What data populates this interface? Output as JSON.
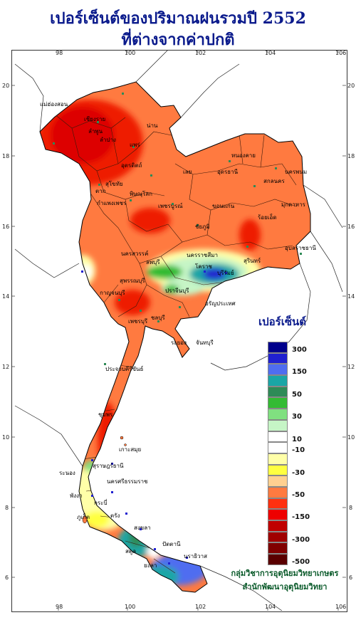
{
  "title": {
    "line1": "เปอร์เซ็นต์ของปริมาณฝนรวมปี 2552",
    "line2": "ที่ต่างจากค่าปกติ"
  },
  "axes": {
    "longitude_ticks": [
      "98",
      "100",
      "102",
      "104",
      "106"
    ],
    "latitude_ticks": [
      "20",
      "18",
      "16",
      "14",
      "12",
      "10",
      "8",
      "6"
    ]
  },
  "legend": {
    "title": "เปอร์เซ็นต์",
    "items": [
      {
        "label": "300",
        "color": "#00008b"
      },
      {
        "label": "",
        "color": "#2020d0"
      },
      {
        "label": "150",
        "color": "#4f6df0"
      },
      {
        "label": "",
        "color": "#1aa6a6"
      },
      {
        "label": "50",
        "color": "#2e8b57"
      },
      {
        "label": "",
        "color": "#33bb33"
      },
      {
        "label": "30",
        "color": "#80e080"
      },
      {
        "label": "",
        "color": "#c6f5c6"
      },
      {
        "label": "10",
        "color": "#ffffff"
      },
      {
        "label": "-10",
        "color": "#ffffff"
      },
      {
        "label": "",
        "color": "#ffffa8"
      },
      {
        "label": "-30",
        "color": "#ffff40"
      },
      {
        "label": "",
        "color": "#ffd090"
      },
      {
        "label": "-50",
        "color": "#ff7a40"
      },
      {
        "label": "",
        "color": "#ff3010"
      },
      {
        "label": "-150",
        "color": "#ee0000"
      },
      {
        "label": "",
        "color": "#c00000"
      },
      {
        "label": "-300",
        "color": "#a00000"
      },
      {
        "label": "",
        "color": "#800000"
      },
      {
        "label": "-500",
        "color": "#5a0000"
      }
    ]
  },
  "credit": {
    "line1": "กลุ่มวิชาการอุตุนิยมวิทยาเกษตร",
    "line2": "สำนักพัฒนาอุตุนิยมวิทยา"
  },
  "places": [
    "เชียงราย",
    "น่าน",
    "แม่ฮ่องสอน",
    "ลำพูน",
    "ลำปาง",
    "แพร่",
    "อุตรดิตถ์",
    "ตาก",
    "สุโขทัย",
    "พิษณุโลก",
    "กำแพงเพชร",
    "เพชรบูรณ์",
    "หนองคาย",
    "อุดรธานี",
    "สกลนคร",
    "นครพนม",
    "เลย",
    "ขอนแก่น",
    "มุกดาหาร",
    "ชัยภูมิ",
    "ร้อยเอ็ด",
    "อุบลราชธานี",
    "สุรินทร์",
    "นครราชสีมา",
    "โคราช",
    "บุรีรัมย์",
    "นครสวรรค์",
    "ลพบุรี",
    "สุพรรณบุรี",
    "กาญจนบุรี",
    "ปราจีนบุรี",
    "อรัญประเทศ",
    "ชลบุรี",
    "ระยอง",
    "จันทบุรี",
    "เพชรบุรี",
    "ประจวบคีรีขันธ์",
    "ชุมพร",
    "เกาะสมุย",
    "สุราษฎร์ธานี",
    "ระนอง",
    "พังงา",
    "นครศรีธรรมราช",
    "ภูเก็ต",
    "กระบี่",
    "ตรัง",
    "สงขลา",
    "ปัตตานี",
    "นราธิวาส",
    "สตูล",
    "ยะลา"
  ]
}
